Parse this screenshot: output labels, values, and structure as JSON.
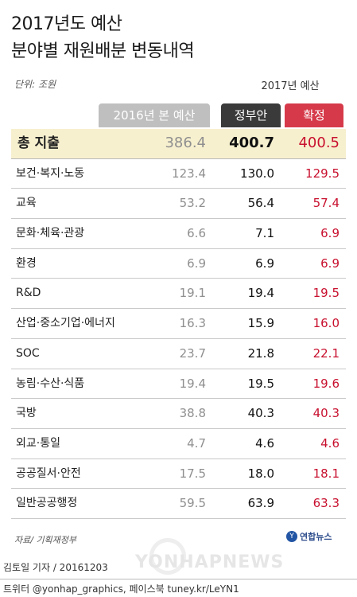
{
  "title_line1": "2017년도 예산",
  "title_line2": "분야별 재원배분 변동내역",
  "unit": "단위: 조원",
  "group_header": "2017년 예산",
  "colors": {
    "gray_header": "#bfbfbf",
    "dark_header": "#3a3a3a",
    "red_header": "#d63a4a",
    "total_row_bg": "#f7f0cf",
    "final_value": "#c8102e"
  },
  "chart_data": {
    "type": "table",
    "columns": [
      "2016년 본 예산",
      "정부안",
      "확정"
    ],
    "rows": [
      {
        "category": "총 지출",
        "v2016": "386.4",
        "gov": "400.7",
        "final": "400.5"
      },
      {
        "category": "보건·복지·노동",
        "v2016": "123.4",
        "gov": "130.0",
        "final": "129.5"
      },
      {
        "category": "교육",
        "v2016": "53.2",
        "gov": "56.4",
        "final": "57.4"
      },
      {
        "category": "문화·체육·관광",
        "v2016": "6.6",
        "gov": "7.1",
        "final": "6.9"
      },
      {
        "category": "환경",
        "v2016": "6.9",
        "gov": "6.9",
        "final": "6.9"
      },
      {
        "category": "R&D",
        "v2016": "19.1",
        "gov": "19.4",
        "final": "19.5"
      },
      {
        "category": "산업·중소기업·에너지",
        "v2016": "16.3",
        "gov": "15.9",
        "final": "16.0"
      },
      {
        "category": "SOC",
        "v2016": "23.7",
        "gov": "21.8",
        "final": "22.1"
      },
      {
        "category": "농림·수산·식품",
        "v2016": "19.4",
        "gov": "19.5",
        "final": "19.6"
      },
      {
        "category": "국방",
        "v2016": "38.8",
        "gov": "40.3",
        "final": "40.3"
      },
      {
        "category": "외교·통일",
        "v2016": "4.7",
        "gov": "4.6",
        "final": "4.6"
      },
      {
        "category": "공공질서·안전",
        "v2016": "17.5",
        "gov": "18.0",
        "final": "18.1"
      },
      {
        "category": "일반공공행정",
        "v2016": "59.5",
        "gov": "63.9",
        "final": "63.3"
      }
    ]
  },
  "source": "자료/ 기획재정부",
  "logo_text": "연합뉴스",
  "watermark": "YONHAPNEWS",
  "credit_line1": "김토일 기자 / 20161203",
  "credit_line2": "트위터 @yonhap_graphics, 페이스북 tuney.kr/LeYN1"
}
